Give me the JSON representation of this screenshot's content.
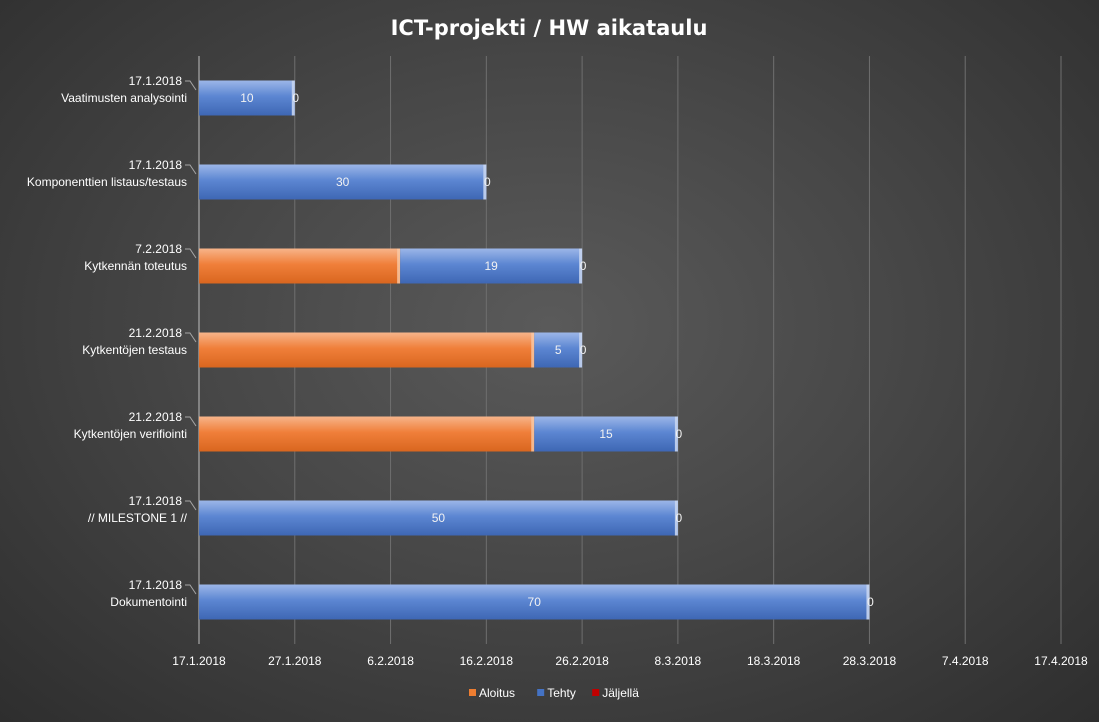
{
  "chart_data": {
    "type": "bar",
    "orientation": "horizontal-stacked",
    "title": "ICT-projekti / HW aikataulu",
    "colors": {
      "Aloitus": "#ed7d31",
      "Tehty": "#4472c4",
      "Jäljellä": "#c00000"
    },
    "x_axis": {
      "type": "date",
      "range": [
        "17.1.2018",
        "17.4.2018"
      ],
      "tick_labels": [
        "17.1.2018",
        "27.1.2018",
        "6.2.2018",
        "16.2.2018",
        "26.2.2018",
        "8.3.2018",
        "18.3.2018",
        "28.3.2018",
        "7.4.2018",
        "17.4.2018"
      ]
    },
    "grid": true,
    "legend_position": "bottom",
    "categories": [
      {
        "date": "17.1.2018",
        "name": "Vaatimusten analysointi"
      },
      {
        "date": "17.1.2018",
        "name": "Komponenttien listaus/testaus"
      },
      {
        "date": "7.2.2018",
        "name": "Kytkennän toteutus"
      },
      {
        "date": "21.2.2018",
        "name": "Kytkentöjen testaus"
      },
      {
        "date": "21.2.2018",
        "name": "Kytkentöjen verifiointi"
      },
      {
        "date": "17.1.2018",
        "name": "// MILESTONE 1 //"
      },
      {
        "date": "17.1.2018",
        "name": "Dokumentointi"
      }
    ],
    "series": [
      {
        "name": "Aloitus",
        "values": [
          "17.1.2018",
          "17.1.2018",
          "7.2.2018",
          "21.2.2018",
          "21.2.2018",
          "17.1.2018",
          "17.1.2018"
        ]
      },
      {
        "name": "Tehty",
        "values": [
          10,
          30,
          19,
          5,
          15,
          50,
          70
        ]
      },
      {
        "name": "Jäljellä",
        "values": [
          0,
          0,
          0,
          0,
          0,
          0,
          0
        ]
      }
    ]
  }
}
